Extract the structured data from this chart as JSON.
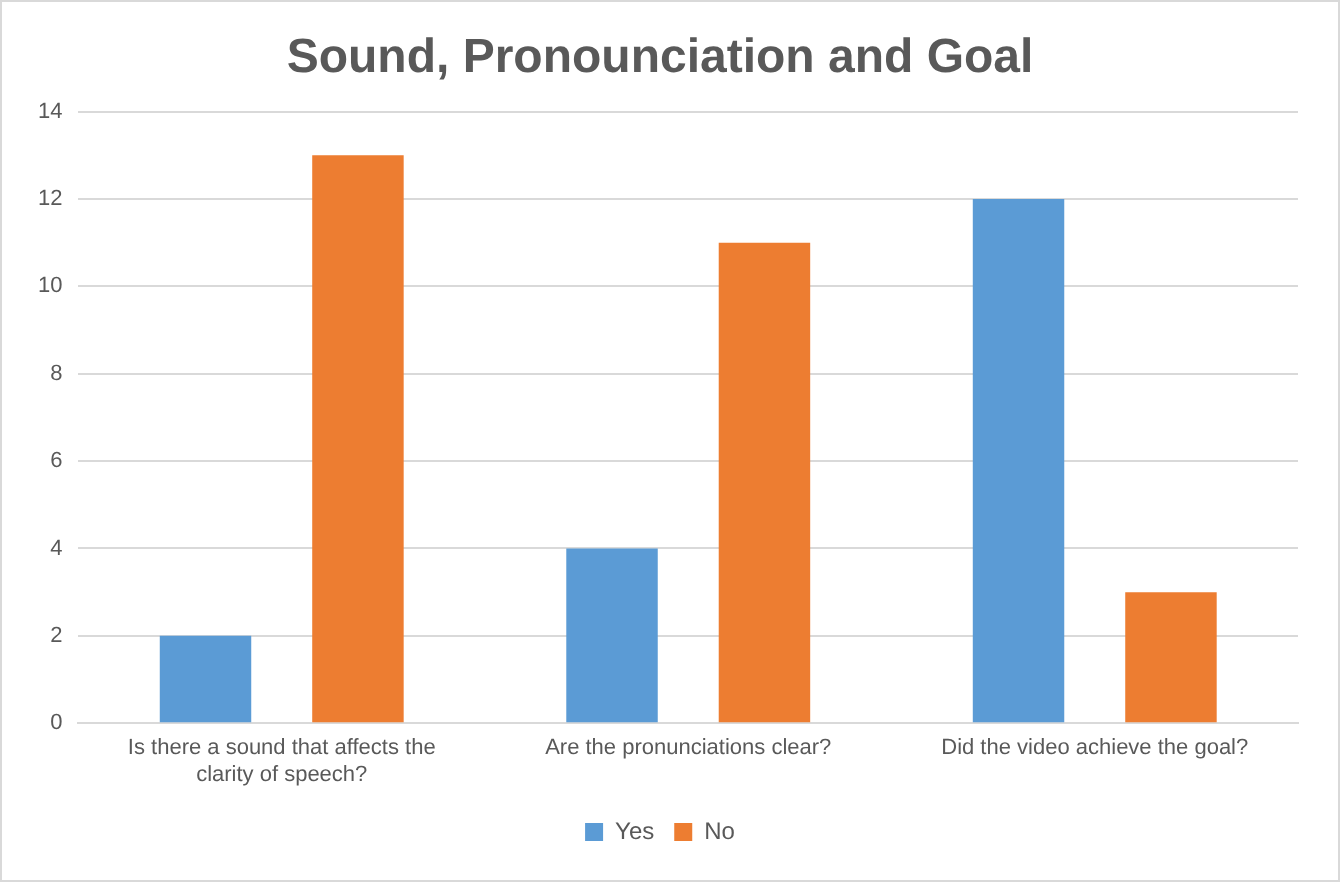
{
  "chart_data": {
    "type": "bar",
    "title": "Sound, Pronounciation and Goal",
    "categories": [
      "Is there a sound that affects the clarity of speech?",
      "Are the pronunciations clear?",
      "Did the video achieve the goal?"
    ],
    "series": [
      {
        "name": "Yes",
        "color": "#5b9bd5",
        "values": [
          2,
          4,
          12
        ]
      },
      {
        "name": "No",
        "color": "#ed7d31",
        "values": [
          13,
          11,
          3
        ]
      }
    ],
    "ylim": [
      0,
      14
    ],
    "yticks": [
      0,
      2,
      4,
      6,
      8,
      10,
      12,
      14
    ],
    "grid": "y",
    "legend": "bottom"
  }
}
